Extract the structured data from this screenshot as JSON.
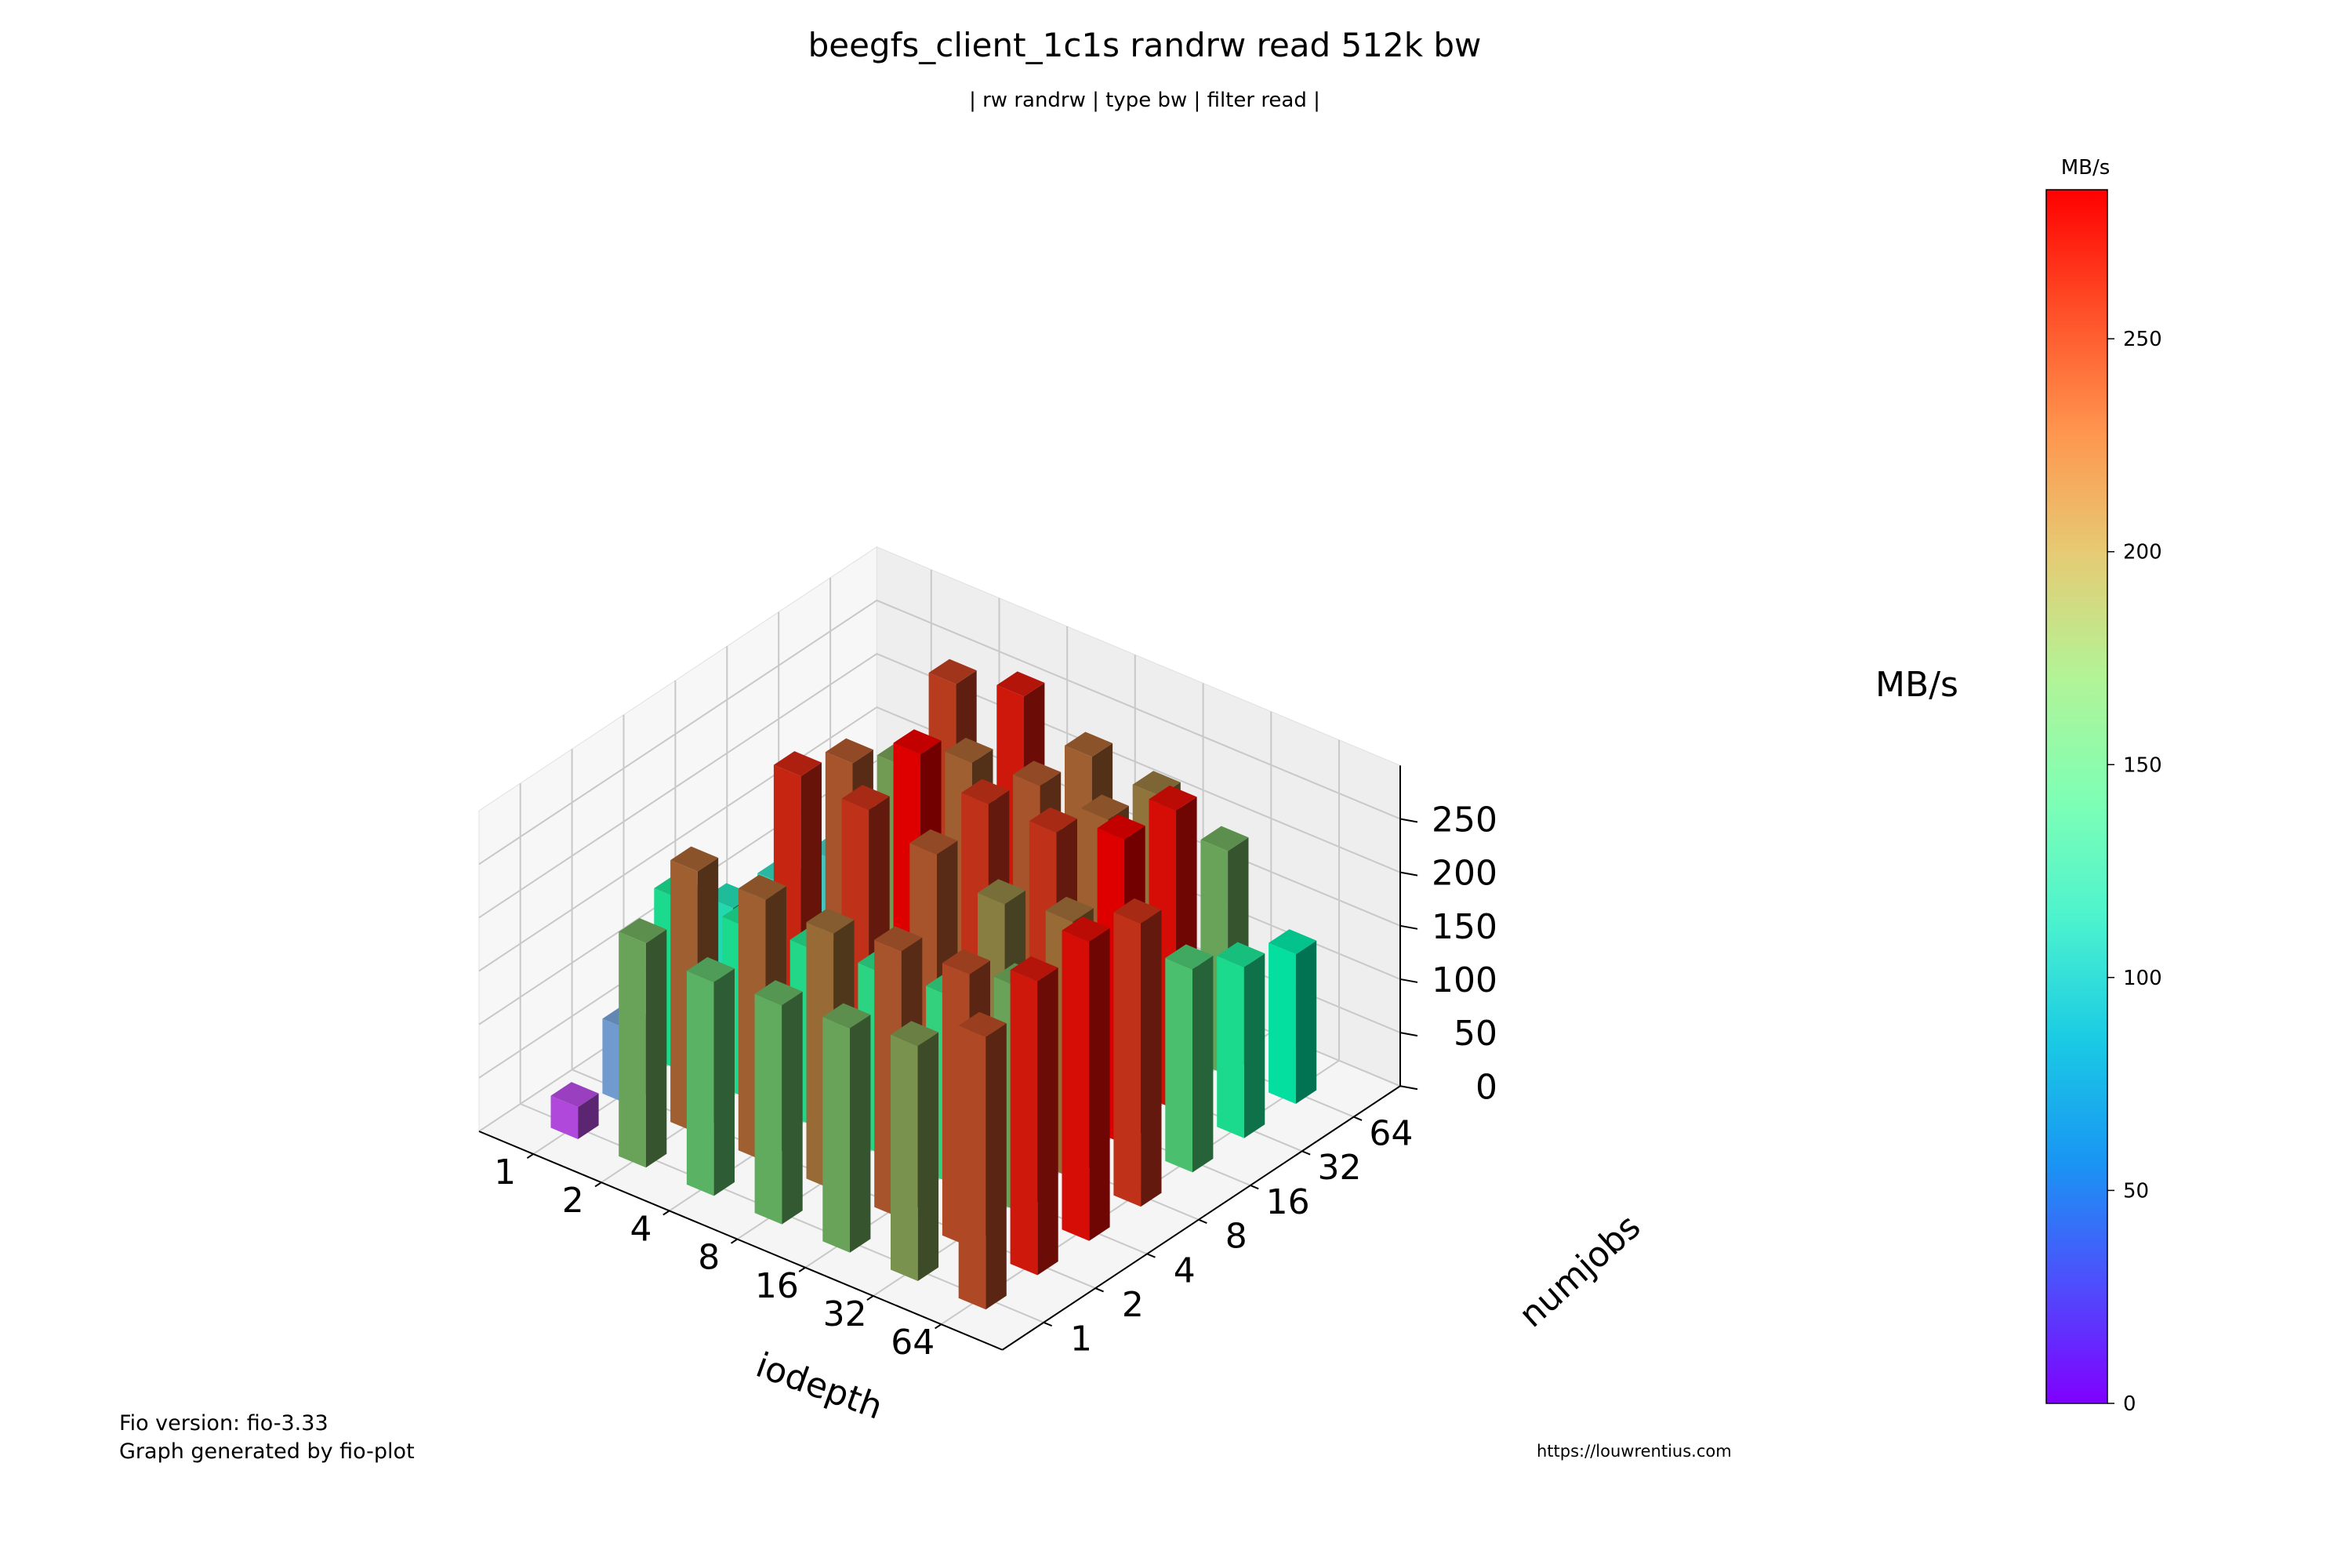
{
  "title": "beegfs_client_1c1s randrw read 512k bw",
  "subtitle": "| rw randrw | type bw | filter read |",
  "footer": {
    "line1": "Fio version: fio-3.33",
    "line2": "Graph generated by fio-plot",
    "url": "https://louwrentius.com"
  },
  "chart_data": {
    "type": "bar3d",
    "title": "beegfs_client_1c1s randrw read 512k bw",
    "subtitle": "| rw randrw | type bw | filter read |",
    "xlabel": "iodepth",
    "ylabel": "numjobs",
    "zlabel": "MB/s",
    "x_categories": [
      "1",
      "2",
      "4",
      "8",
      "16",
      "32",
      "64"
    ],
    "y_categories": [
      "1",
      "2",
      "4",
      "8",
      "16",
      "32",
      "64"
    ],
    "z_ticks": [
      0,
      50,
      100,
      150,
      200,
      250
    ],
    "zlim": [
      0,
      285
    ],
    "values": [
      [
        30,
        210,
        200,
        205,
        210,
        220,
        255
      ],
      [
        70,
        245,
        245,
        240,
        250,
        255,
        275
      ],
      [
        160,
        160,
        165,
        170,
        175,
        210,
        280
      ],
      [
        120,
        270,
        265,
        250,
        230,
        240,
        265
      ],
      [
        110,
        250,
        285,
        265,
        265,
        285,
        190
      ],
      [
        100,
        215,
        245,
        250,
        245,
        280,
        160
      ],
      [
        80,
        260,
        275,
        245,
        235,
        210,
        140
      ]
    ],
    "colorbar": {
      "label": "MB/s",
      "ticks": [
        0,
        50,
        100,
        150,
        200,
        250
      ],
      "range": [
        0,
        285
      ],
      "colormap": "rainbow"
    }
  }
}
